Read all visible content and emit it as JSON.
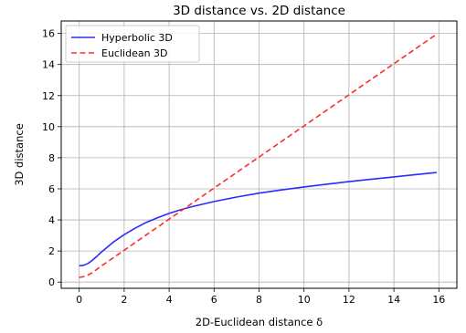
{
  "chart_data": {
    "type": "line",
    "title": "3D distance vs. 2D distance",
    "xlabel": "2D-Euclidean distance δ",
    "ylabel": "3D distance",
    "xlim": [
      -0.8,
      16.8
    ],
    "ylim": [
      -0.4,
      16.8
    ],
    "xticks": [
      0,
      2,
      4,
      6,
      8,
      10,
      12,
      14,
      16
    ],
    "yticks": [
      0,
      2,
      4,
      6,
      8,
      10,
      12,
      14,
      16
    ],
    "grid": true,
    "legend_position": "upper-left",
    "series": [
      {
        "name": "Hyperbolic 3D",
        "color": "#2b2bff",
        "style": "solid",
        "x": [
          0.0,
          0.2,
          0.4,
          0.6,
          0.8,
          1.0,
          1.5,
          2.0,
          2.5,
          3.0,
          3.5,
          4.0,
          4.5,
          5.0,
          6.0,
          7.0,
          8.0,
          9.0,
          10.0,
          11.0,
          12.0,
          13.0,
          14.0,
          15.0,
          15.9
        ],
        "y": [
          1.05,
          1.08,
          1.2,
          1.42,
          1.68,
          1.95,
          2.55,
          3.05,
          3.48,
          3.85,
          4.15,
          4.42,
          4.65,
          4.85,
          5.18,
          5.47,
          5.72,
          5.93,
          6.12,
          6.3,
          6.46,
          6.62,
          6.77,
          6.92,
          7.05
        ]
      },
      {
        "name": "Euclidean 3D",
        "color": "#ff2b2b",
        "style": "dashed",
        "x": [
          0.0,
          0.3,
          0.6,
          1.0,
          1.5,
          2.0,
          3.0,
          4.0,
          6.0,
          8.0,
          10.0,
          12.0,
          14.0,
          15.9
        ],
        "y": [
          0.3,
          0.38,
          0.62,
          1.05,
          1.55,
          2.05,
          3.05,
          4.05,
          6.05,
          8.05,
          10.05,
          12.05,
          14.05,
          15.95
        ]
      }
    ]
  }
}
